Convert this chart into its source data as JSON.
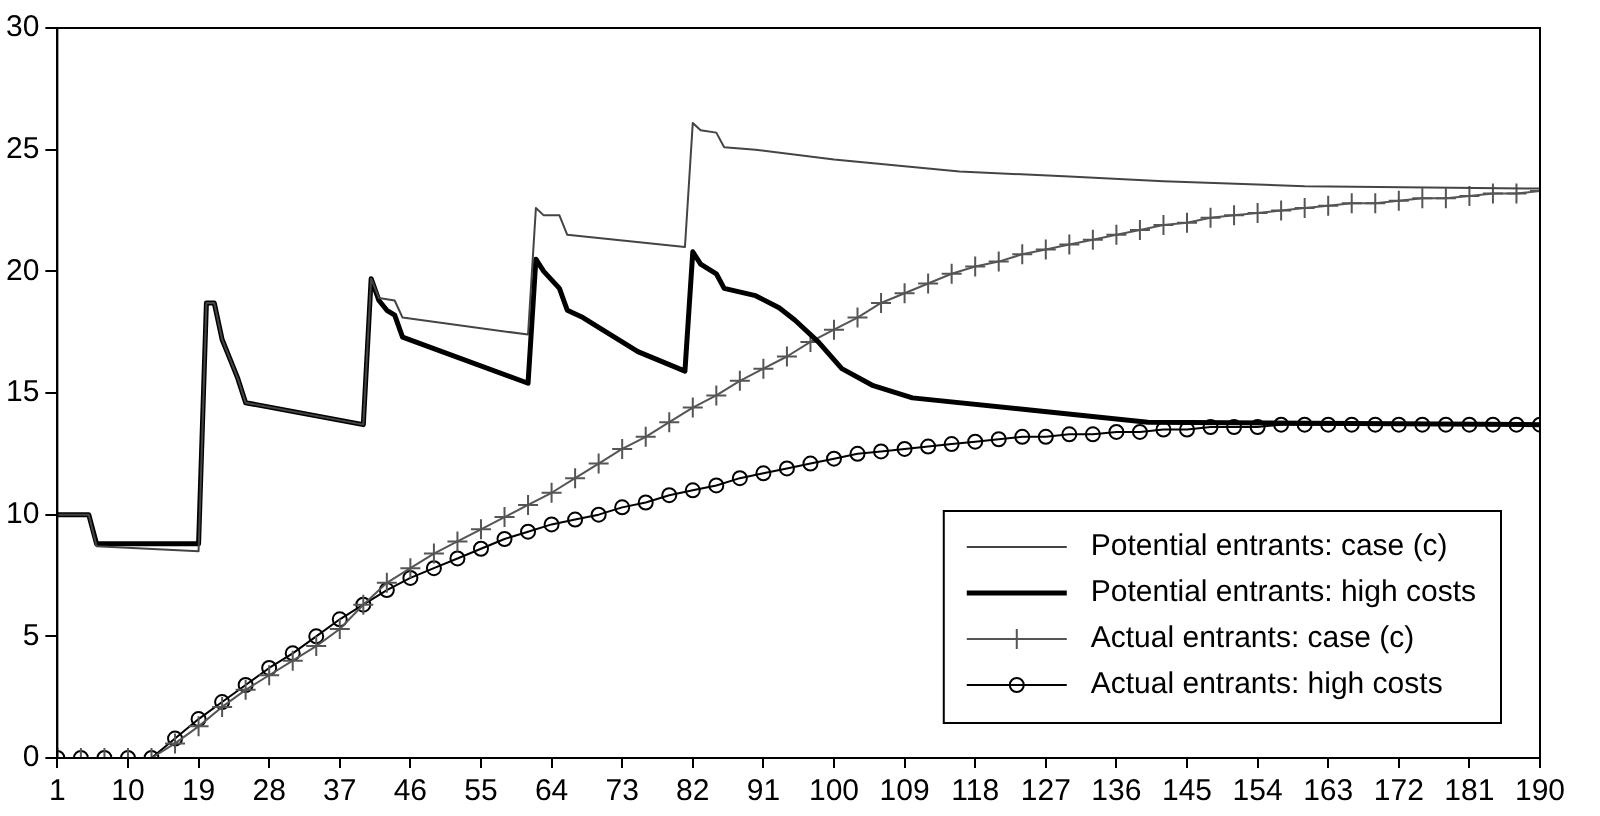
{
  "chart_data": {
    "type": "line",
    "xlim": [
      1,
      190
    ],
    "xticks": [
      1,
      10,
      19,
      28,
      37,
      46,
      55,
      64,
      73,
      82,
      91,
      100,
      109,
      118,
      127,
      136,
      145,
      154,
      163,
      172,
      181,
      190
    ],
    "ylim": [
      0,
      30
    ],
    "yticks": [
      0,
      5,
      10,
      15,
      20,
      25,
      30
    ],
    "grid": false,
    "legend": "bottom right",
    "series": [
      {
        "name": "Potential entrants: case (c)",
        "color": "#444444",
        "marker": "none",
        "x": [
          1,
          5,
          6,
          19,
          20,
          21,
          22,
          23,
          24,
          25,
          40,
          41,
          42,
          44,
          45,
          61,
          62,
          63,
          65,
          66,
          81,
          82,
          83,
          85,
          86,
          90,
          100,
          116,
          130,
          142,
          160,
          190
        ],
        "values": [
          10,
          10,
          8.7,
          8.5,
          18.7,
          18.7,
          17.2,
          16.4,
          15.6,
          14.6,
          13.7,
          19.7,
          18.9,
          18.8,
          18.1,
          17.4,
          22.6,
          22.3,
          22.3,
          21.5,
          21.0,
          26.1,
          25.8,
          25.7,
          25.1,
          25.0,
          24.6,
          24.1,
          23.9,
          23.7,
          23.5,
          23.4
        ]
      },
      {
        "name": "Potential entrants: high costs",
        "color": "#000000",
        "marker": "none",
        "x": [
          1,
          5,
          6,
          19,
          20,
          21,
          22,
          23,
          24,
          25,
          40,
          41,
          42,
          43,
          44,
          45,
          61,
          62,
          63,
          65,
          66,
          68,
          70,
          75,
          81,
          82,
          83,
          85,
          86,
          90,
          93,
          95,
          98,
          101,
          105,
          110,
          125,
          140,
          190
        ],
        "values": [
          10,
          10,
          8.8,
          8.8,
          18.7,
          18.7,
          17.2,
          16.4,
          15.6,
          14.6,
          13.7,
          19.7,
          18.8,
          18.4,
          18.2,
          17.3,
          15.4,
          20.5,
          20.0,
          19.3,
          18.4,
          18.1,
          17.7,
          16.7,
          15.9,
          20.8,
          20.3,
          19.9,
          19.3,
          19.0,
          18.5,
          18.0,
          17.1,
          16.0,
          15.3,
          14.8,
          14.3,
          13.8,
          13.7
        ]
      },
      {
        "name": "Actual entrants: case (c)",
        "color": "#555555",
        "marker": "cross",
        "x": [
          1,
          4,
          7,
          10,
          13,
          16,
          19,
          22,
          25,
          28,
          31,
          34,
          37,
          40,
          43,
          46,
          49,
          52,
          55,
          58,
          61,
          64,
          67,
          70,
          73,
          76,
          79,
          82,
          85,
          88,
          91,
          94,
          97,
          100,
          103,
          106,
          109,
          112,
          115,
          118,
          121,
          124,
          127,
          130,
          133,
          136,
          139,
          142,
          145,
          148,
          151,
          154,
          157,
          160,
          163,
          166,
          169,
          172,
          175,
          178,
          181,
          184,
          187,
          190
        ],
        "values": [
          0,
          0,
          0,
          0,
          0,
          0.6,
          1.3,
          2.1,
          2.8,
          3.4,
          4.0,
          4.6,
          5.3,
          6.3,
          7.2,
          7.8,
          8.4,
          8.9,
          9.4,
          9.9,
          10.4,
          10.9,
          11.5,
          12.1,
          12.7,
          13.2,
          13.8,
          14.4,
          14.9,
          15.5,
          16.0,
          16.5,
          17.1,
          17.6,
          18.1,
          18.7,
          19.1,
          19.5,
          19.9,
          20.2,
          20.4,
          20.7,
          20.9,
          21.1,
          21.3,
          21.5,
          21.7,
          21.9,
          22.0,
          22.2,
          22.3,
          22.4,
          22.5,
          22.6,
          22.7,
          22.8,
          22.8,
          22.9,
          23.0,
          23.0,
          23.1,
          23.2,
          23.2,
          23.3
        ]
      },
      {
        "name": "Actual entrants: high costs",
        "color": "#000000",
        "marker": "circle",
        "x": [
          1,
          4,
          7,
          10,
          13,
          16,
          19,
          22,
          25,
          28,
          31,
          34,
          37,
          40,
          43,
          46,
          49,
          52,
          55,
          58,
          61,
          64,
          67,
          70,
          73,
          76,
          79,
          82,
          85,
          88,
          91,
          94,
          97,
          100,
          103,
          106,
          109,
          112,
          115,
          118,
          121,
          124,
          127,
          130,
          133,
          136,
          139,
          142,
          145,
          148,
          151,
          154,
          157,
          160,
          163,
          166,
          169,
          172,
          175,
          178,
          181,
          184,
          187,
          190
        ],
        "values": [
          0,
          0,
          0,
          0,
          0,
          0.8,
          1.6,
          2.3,
          3.0,
          3.7,
          4.3,
          5.0,
          5.7,
          6.3,
          6.9,
          7.4,
          7.8,
          8.2,
          8.6,
          9.0,
          9.3,
          9.6,
          9.8,
          10.0,
          10.3,
          10.5,
          10.8,
          11.0,
          11.2,
          11.5,
          11.7,
          11.9,
          12.1,
          12.3,
          12.5,
          12.6,
          12.7,
          12.8,
          12.9,
          13.0,
          13.1,
          13.2,
          13.2,
          13.3,
          13.3,
          13.4,
          13.4,
          13.5,
          13.5,
          13.6,
          13.6,
          13.6,
          13.7,
          13.7,
          13.7,
          13.7,
          13.7,
          13.7,
          13.7,
          13.7,
          13.7,
          13.7,
          13.7,
          13.7
        ]
      }
    ]
  }
}
